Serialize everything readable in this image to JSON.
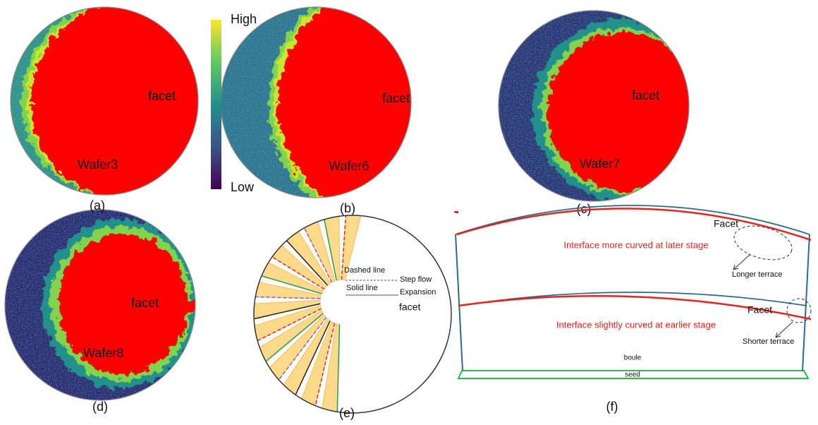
{
  "colorbar": {
    "high": "High",
    "low": "Low"
  },
  "panels": [
    {
      "label": "(a)",
      "wafer": "Wafer3",
      "facet": "facet"
    },
    {
      "label": "(b)",
      "wafer": "Wafer6",
      "facet": "facet"
    },
    {
      "label": "(c)",
      "wafer": "Wafer7",
      "facet": "facet"
    },
    {
      "label": "(d)",
      "wafer": "Wafer8",
      "facet": "facet"
    }
  ],
  "panel_e": {
    "label": "(e)",
    "dashed_line": "Dashed line",
    "step_flow": "Step flow",
    "solid_line": "Solid line",
    "expansion": "Expansion",
    "facet": "facet"
  },
  "panel_f": {
    "label": "(f)",
    "upper_facet": "Facet",
    "upper_interface": "Interface more curved at later stage",
    "longer_terrace": "Longer terrace",
    "lower_facet": "Facet",
    "lower_interface": "Interface slightly curved at earlier stage",
    "shorter_terrace": "Shorter terrace",
    "boule": "boule",
    "seed": "seed"
  }
}
